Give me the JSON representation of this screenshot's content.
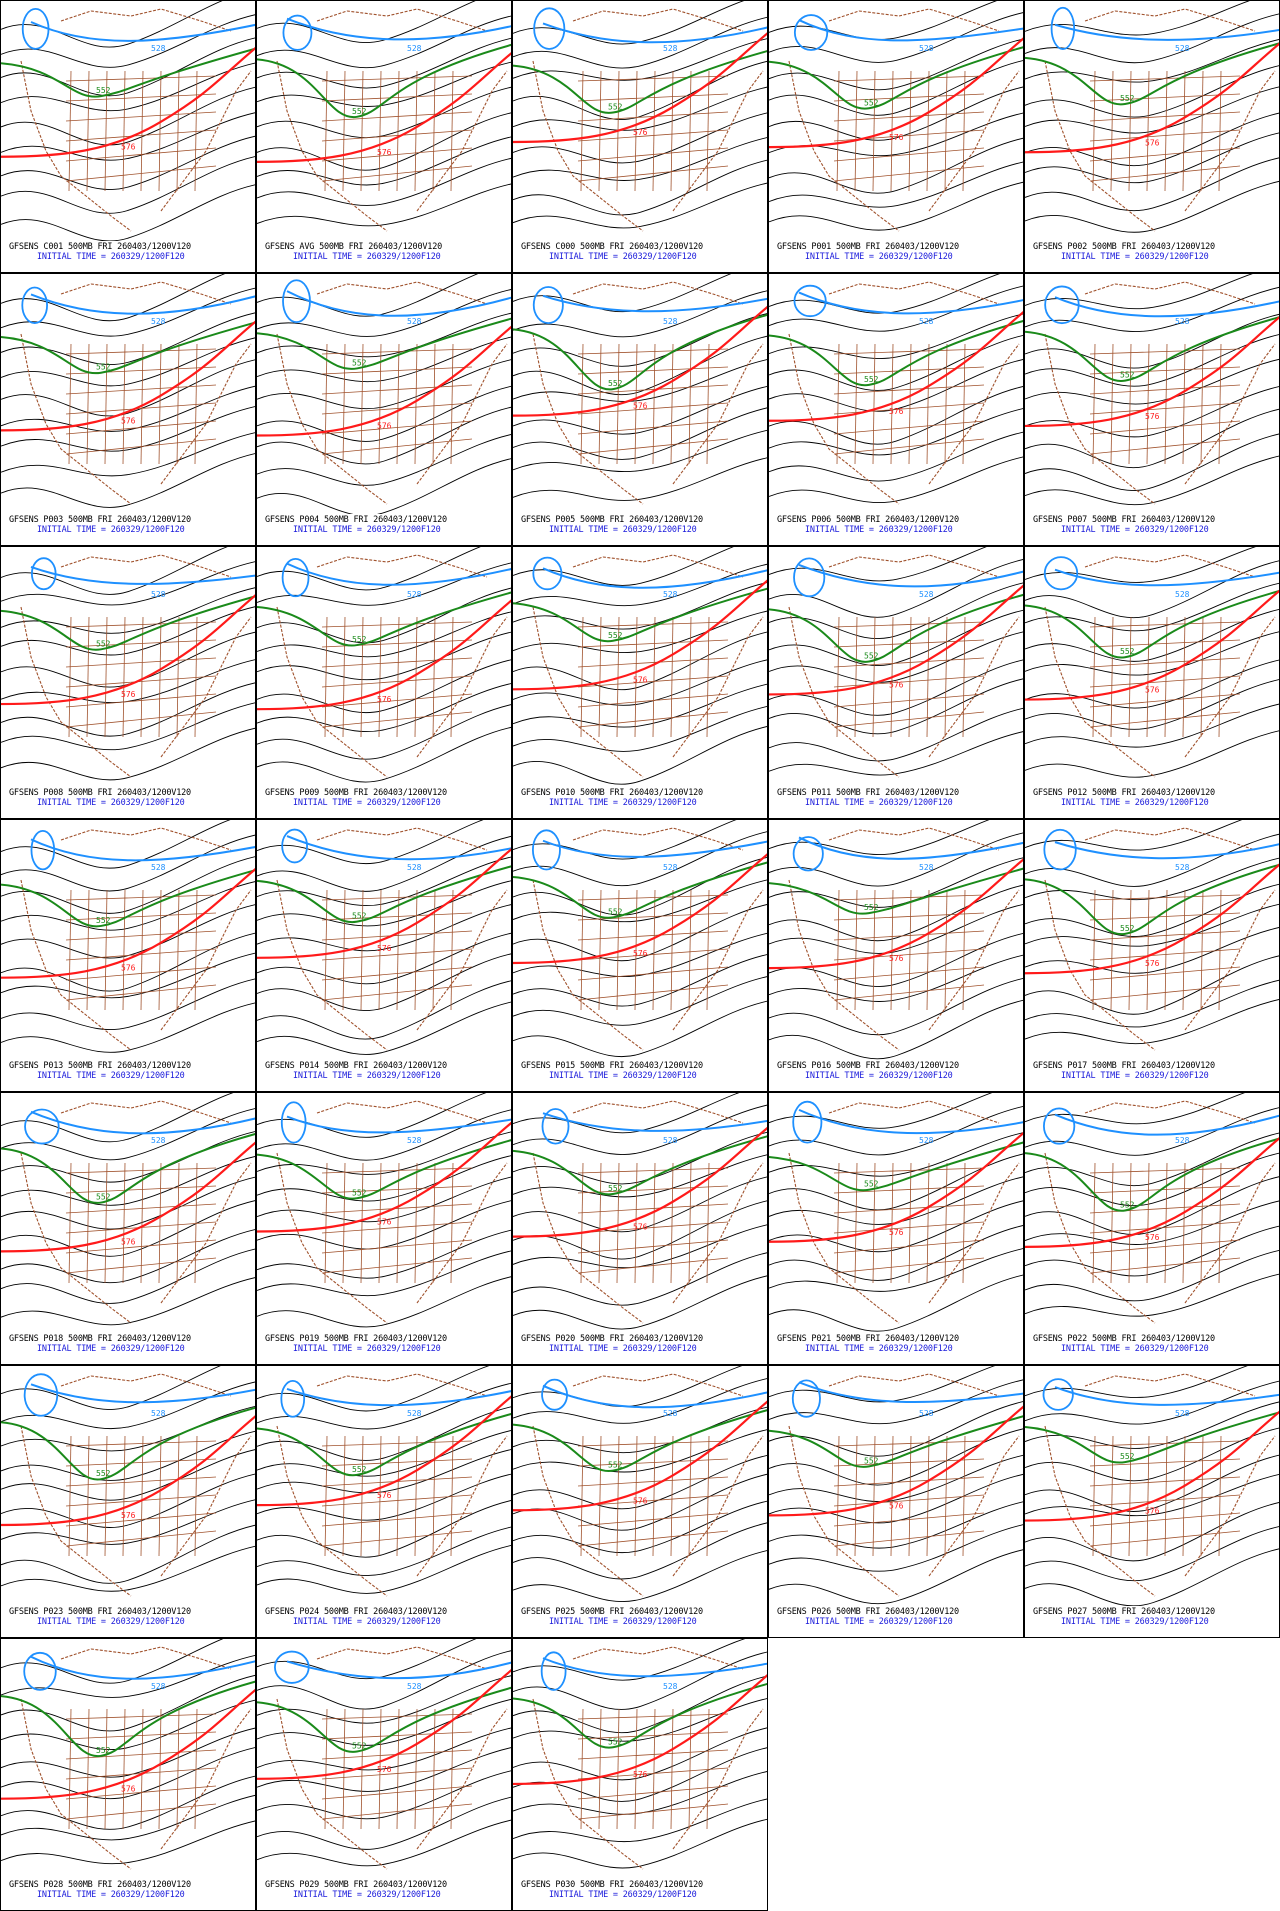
{
  "colors": {
    "contour_black": "#000000",
    "contour_blue": "#1e90ff",
    "contour_green": "#1a8a1a",
    "contour_red": "#ff1a1a",
    "borders_brown": "#a0522d",
    "caption_black": "#000000",
    "caption_blue": "#1a1adb"
  },
  "contour_labels": {
    "blue": "528",
    "green": "552",
    "red": "576"
  },
  "initial_time_label": "INITIAL TIME = 260329/1200F120",
  "panels": [
    {
      "title": "GFSENS C001 500MB FRI 260403/1200V120"
    },
    {
      "title": "GFSENS AVG 500MB FRI 260403/1200V120"
    },
    {
      "title": "GFSENS C000 500MB FRI 260403/1200V120"
    },
    {
      "title": "GFSENS P001 500MB FRI 260403/1200V120"
    },
    {
      "title": "GFSENS P002 500MB FRI 260403/1200V120"
    },
    {
      "title": "GFSENS P003 500MB FRI 260403/1200V120"
    },
    {
      "title": "GFSENS P004 500MB FRI 260403/1200V120"
    },
    {
      "title": "GFSENS P005 500MB FRI 260403/1200V120"
    },
    {
      "title": "GFSENS P006 500MB FRI 260403/1200V120"
    },
    {
      "title": "GFSENS P007 500MB FRI 260403/1200V120"
    },
    {
      "title": "GFSENS P008 500MB FRI 260403/1200V120"
    },
    {
      "title": "GFSENS P009 500MB FRI 260403/1200V120"
    },
    {
      "title": "GFSENS P010 500MB FRI 260403/1200V120"
    },
    {
      "title": "GFSENS P011 500MB FRI 260403/1200V120"
    },
    {
      "title": "GFSENS P012 500MB FRI 260403/1200V120"
    },
    {
      "title": "GFSENS P013 500MB FRI 260403/1200V120"
    },
    {
      "title": "GFSENS P014 500MB FRI 260403/1200V120"
    },
    {
      "title": "GFSENS P015 500MB FRI 260403/1200V120"
    },
    {
      "title": "GFSENS P016 500MB FRI 260403/1200V120"
    },
    {
      "title": "GFSENS P017 500MB FRI 260403/1200V120"
    },
    {
      "title": "GFSENS P018 500MB FRI 260403/1200V120"
    },
    {
      "title": "GFSENS P019 500MB FRI 260403/1200V120"
    },
    {
      "title": "GFSENS P020 500MB FRI 260403/1200V120"
    },
    {
      "title": "GFSENS P021 500MB FRI 260403/1200V120"
    },
    {
      "title": "GFSENS P022 500MB FRI 260403/1200V120"
    },
    {
      "title": "GFSENS P023 500MB FRI 260403/1200V120"
    },
    {
      "title": "GFSENS P024 500MB FRI 260403/1200V120"
    },
    {
      "title": "GFSENS P025 500MB FRI 260403/1200V120"
    },
    {
      "title": "GFSENS P026 500MB FRI 260403/1200V120"
    },
    {
      "title": "GFSENS P027 500MB FRI 260403/1200V120"
    },
    {
      "title": "GFSENS P028 500MB FRI 260403/1200V120"
    },
    {
      "title": "GFSENS P029 500MB FRI 260403/1200V120"
    },
    {
      "title": "GFSENS P030 500MB FRI 260403/1200V120"
    }
  ]
}
